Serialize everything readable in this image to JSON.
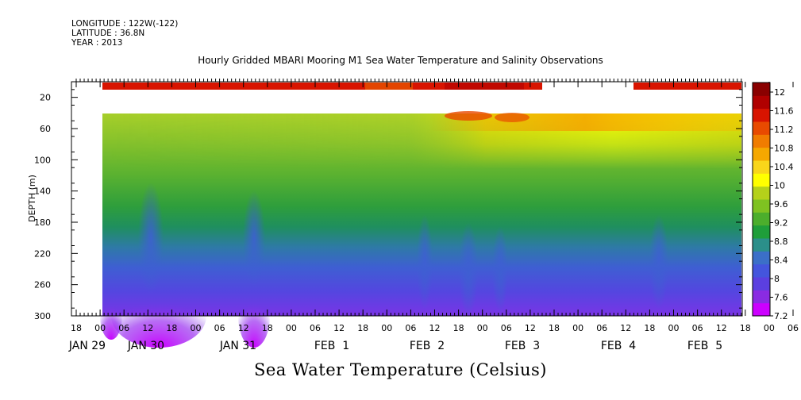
{
  "header": {
    "longitude": "LONGITUDE : 122W(-122)",
    "latitude": "LATITUDE : 36.8N",
    "year": "YEAR : 2013"
  },
  "chart_data": {
    "type": "heatmap",
    "title": "Hourly Gridded MBARI Mooring M1 Sea Water Temperature and Salinity Observations",
    "xlabel": "",
    "ylabel": "DEPTH (m)",
    "colorbar_label": "Sea Water Temperature (Celsius)",
    "ylim": [
      300,
      0
    ],
    "y_ticks": [
      "20",
      "60",
      "100",
      "140",
      "180",
      "220",
      "260",
      "300"
    ],
    "x_hour_labels": [
      "18",
      "00",
      "06",
      "12",
      "18",
      "00",
      "06",
      "12",
      "18",
      "00",
      "06",
      "12",
      "18",
      "00",
      "06",
      "12",
      "18",
      "00",
      "06",
      "12",
      "18",
      "00",
      "06",
      "12",
      "18",
      "00",
      "06",
      "12",
      "18",
      "00",
      "06",
      "12"
    ],
    "x_date_labels": [
      "JAN 29",
      "JAN 30",
      "JAN 31",
      "FEB  1",
      "FEB  2",
      "FEB  3",
      "FEB  4",
      "FEB  5"
    ],
    "colorbar_ticks": [
      "7.2",
      "7.6",
      "8",
      "8.4",
      "8.8",
      "9.2",
      "9.6",
      "10",
      "10.4",
      "10.8",
      "11.2",
      "11.6",
      "12"
    ],
    "colorbar_colors": [
      "#cc00ff",
      "#8a2be2",
      "#5b3fe0",
      "#4455dd",
      "#3b6fc8",
      "#2b8f8a",
      "#1f9e3a",
      "#4cae2c",
      "#7fc221",
      "#b5d11a",
      "#ffff00",
      "#f9d61a",
      "#f5a800",
      "#f07c00",
      "#e84a00",
      "#d81400",
      "#b00000",
      "#8a0000"
    ],
    "surface_band": {
      "depth": 10,
      "segments": [
        {
          "start": "JAN 30 00",
          "end": "FEB 3 15",
          "temperature": 11.7
        },
        {
          "start": "FEB 4 16",
          "end": "FEB 5 21",
          "temperature": 11.7
        }
      ]
    },
    "temperature_profile": {
      "depths": [
        40,
        60,
        100,
        140,
        180,
        220,
        260,
        300
      ],
      "series": [
        {
          "name": "JAN 30",
          "values": [
            9.6,
            9.4,
            9.1,
            8.6,
            8.1,
            7.9,
            7.7,
            7.4
          ]
        },
        {
          "name": "JAN 31",
          "values": [
            9.6,
            9.4,
            9.1,
            8.6,
            8.2,
            8.0,
            7.8,
            7.5
          ]
        },
        {
          "name": "FEB 1",
          "values": [
            9.9,
            9.5,
            9.1,
            8.7,
            8.4,
            8.1,
            7.9,
            7.8
          ]
        },
        {
          "name": "FEB 2",
          "values": [
            11.0,
            10.2,
            9.3,
            8.9,
            8.5,
            8.2,
            8.0,
            7.9
          ]
        },
        {
          "name": "FEB 3",
          "values": [
            10.9,
            10.4,
            9.6,
            9.1,
            8.6,
            8.2,
            8.0,
            7.9
          ]
        },
        {
          "name": "FEB 4",
          "values": [
            10.8,
            10.4,
            9.5,
            9.0,
            8.6,
            8.2,
            8.0,
            7.9
          ]
        },
        {
          "name": "FEB 5",
          "values": [
            10.6,
            10.3,
            9.5,
            9.0,
            8.4,
            8.1,
            7.9,
            7.8
          ]
        }
      ]
    }
  }
}
